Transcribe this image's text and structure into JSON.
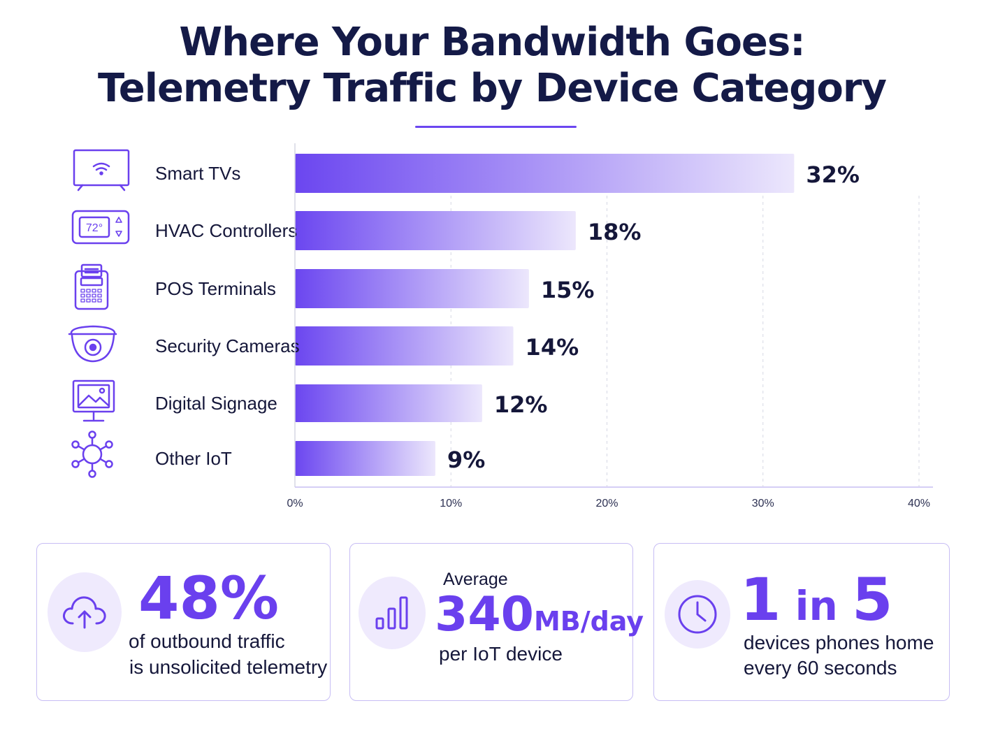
{
  "title_line1": "Where Your Bandwidth Goes:",
  "title_line2": "Telemetry Traffic by Device Category",
  "colors": {
    "accent": "#6a40ee",
    "bar_start": "#6b46f0",
    "bar_end": "#ece7fc",
    "text": "#15173a"
  },
  "chart_data": {
    "type": "bar",
    "orientation": "horizontal",
    "categories": [
      "Smart TVs",
      "HVAC Controllers",
      "POS Terminals",
      "Security Cameras",
      "Digital Signage",
      "Other IoT"
    ],
    "icons": [
      "tv-wifi-icon",
      "thermostat-icon",
      "pos-terminal-icon",
      "security-camera-icon",
      "digital-signage-icon",
      "iot-network-icon"
    ],
    "thermostat_reading": "72°",
    "values": [
      32,
      18,
      15,
      14,
      12,
      9
    ],
    "value_labels": [
      "32%",
      "18%",
      "15%",
      "14%",
      "12%",
      "9%"
    ],
    "xlim": [
      0,
      40
    ],
    "x_ticks": [
      0,
      10,
      20,
      30,
      40
    ],
    "x_tick_labels": [
      "0%",
      "10%",
      "20%",
      "30%",
      "40%"
    ],
    "grid": "vertical dashed",
    "xlabel": "",
    "ylabel": ""
  },
  "stats": [
    {
      "icon": "cloud-upload-icon",
      "big": "48%",
      "caption_line1": "of outbound traffic",
      "caption_line2": "is unsolicited telemetry"
    },
    {
      "icon": "signal-bars-icon",
      "prefix": "Average",
      "big": "340",
      "unit": "MB/day",
      "caption_line1": "per IoT device"
    },
    {
      "icon": "clock-icon",
      "big_a": "1",
      "big_mid": " in ",
      "big_b": "5",
      "caption_line1": "devices phones home",
      "caption_line2": "every 60 seconds"
    }
  ]
}
